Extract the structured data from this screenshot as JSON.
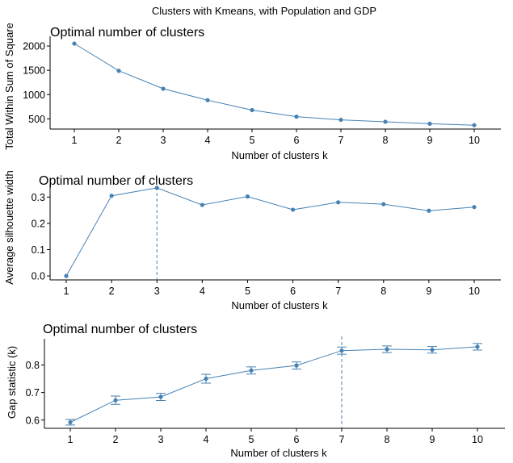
{
  "figure_title": "Clusters with Kmeans, with Population and GDP",
  "colors": {
    "series": "#4682b4",
    "axis": "#000000",
    "text": "#000000"
  },
  "chart_data": [
    {
      "type": "line",
      "title": "Optimal number of clusters",
      "xlabel": "Number of clusters k",
      "ylabel": "Total Within Sum of Square",
      "x": [
        "1",
        "2",
        "3",
        "4",
        "5",
        "6",
        "7",
        "8",
        "9",
        "10"
      ],
      "values": [
        2050,
        1490,
        1120,
        885,
        680,
        545,
        480,
        440,
        400,
        370
      ],
      "yticks": [
        500,
        1000,
        1500,
        2000
      ],
      "ylim": [
        290,
        2200
      ],
      "grid": false,
      "legend": "none"
    },
    {
      "type": "line",
      "title": "Optimal number of clusters",
      "xlabel": "Number of clusters k",
      "ylabel": "Average silhouette width",
      "x": [
        "1",
        "2",
        "3",
        "4",
        "5",
        "6",
        "7",
        "8",
        "9",
        "10"
      ],
      "values": [
        0.0,
        0.305,
        0.335,
        0.27,
        0.302,
        0.252,
        0.28,
        0.273,
        0.248,
        0.262
      ],
      "yticks": [
        0.0,
        0.1,
        0.2,
        0.3
      ],
      "ylim": [
        -0.015,
        0.35
      ],
      "optimal_k": "3",
      "grid": false,
      "legend": "none"
    },
    {
      "type": "line",
      "title": "Optimal number of clusters",
      "xlabel": "Number of clusters k",
      "ylabel": "Gap statistic (k)",
      "x": [
        "1",
        "2",
        "3",
        "4",
        "5",
        "6",
        "7",
        "8",
        "9",
        "10"
      ],
      "values": [
        0.592,
        0.672,
        0.684,
        0.75,
        0.78,
        0.798,
        0.852,
        0.857,
        0.855,
        0.866
      ],
      "error": [
        0.01,
        0.015,
        0.013,
        0.016,
        0.013,
        0.013,
        0.013,
        0.012,
        0.012,
        0.012
      ],
      "yticks": [
        0.6,
        0.7,
        0.8
      ],
      "ylim": [
        0.57,
        0.895
      ],
      "optimal_k": "7",
      "grid": false,
      "legend": "none"
    }
  ]
}
